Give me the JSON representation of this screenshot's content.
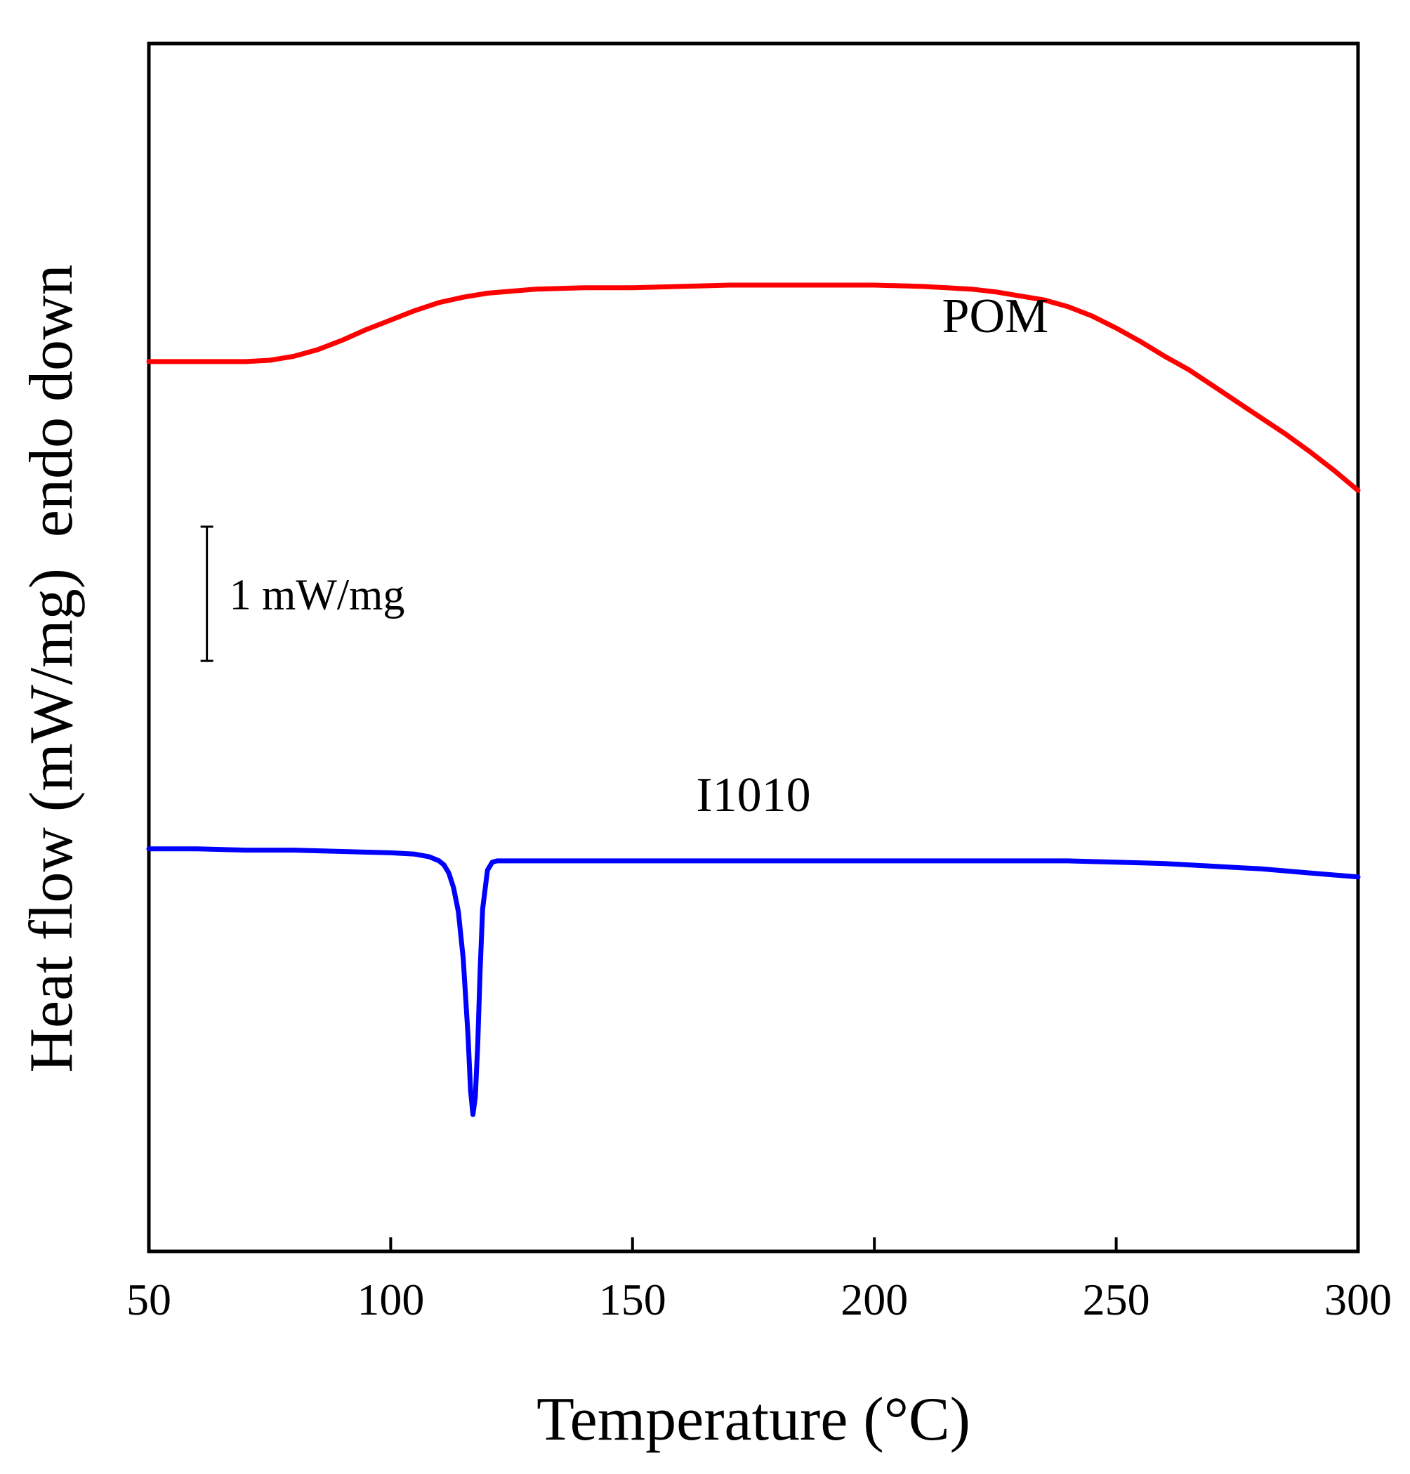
{
  "chart_data": {
    "type": "line",
    "title": "",
    "xlabel": "Temperature (°C)",
    "ylabel": "Heat flow (mW/mg)  endo down",
    "xlim": [
      50,
      300
    ],
    "ylim": [
      -3.5,
      5.5
    ],
    "xticks": [
      50,
      100,
      150,
      200,
      250,
      300
    ],
    "xtick_labels": [
      "50",
      "100",
      "150",
      "200",
      "250",
      "300"
    ],
    "grid": false,
    "legend": "none",
    "scale_bar": {
      "label": "1 mW/mg",
      "value": 1,
      "x": 62,
      "y_bottom": 0.9
    },
    "series": [
      {
        "name": "POM",
        "label": "POM",
        "color": "#ff0000",
        "label_x": 225,
        "label_y": 3.35,
        "x": [
          50,
          60,
          70,
          75,
          80,
          85,
          90,
          95,
          100,
          105,
          110,
          115,
          120,
          130,
          140,
          150,
          160,
          170,
          180,
          190,
          200,
          210,
          220,
          225,
          230,
          235,
          240,
          245,
          250,
          255,
          260,
          265,
          270,
          275,
          280,
          285,
          290,
          295,
          300
        ],
        "y": [
          3.13,
          3.13,
          3.13,
          3.14,
          3.17,
          3.22,
          3.29,
          3.37,
          3.44,
          3.51,
          3.57,
          3.61,
          3.64,
          3.67,
          3.68,
          3.68,
          3.69,
          3.7,
          3.7,
          3.7,
          3.7,
          3.69,
          3.67,
          3.65,
          3.62,
          3.59,
          3.54,
          3.47,
          3.38,
          3.28,
          3.17,
          3.07,
          2.95,
          2.83,
          2.71,
          2.59,
          2.46,
          2.32,
          2.17
        ]
      },
      {
        "name": "I1010",
        "label": "I1010",
        "color": "#0000ff",
        "label_x": 175,
        "label_y": -0.22,
        "x": [
          50,
          60,
          70,
          80,
          90,
          100,
          105,
          108,
          110,
          111,
          112,
          113,
          114,
          115,
          116,
          116.5,
          117,
          117.5,
          118,
          118.5,
          119,
          120,
          121,
          122,
          125,
          130,
          140,
          150,
          160,
          170,
          180,
          190,
          200,
          210,
          220,
          230,
          240,
          250,
          260,
          270,
          280,
          290,
          300
        ],
        "y": [
          -0.5,
          -0.5,
          -0.51,
          -0.51,
          -0.52,
          -0.53,
          -0.54,
          -0.56,
          -0.59,
          -0.62,
          -0.68,
          -0.79,
          -0.97,
          -1.32,
          -1.9,
          -2.3,
          -2.48,
          -2.35,
          -1.95,
          -1.4,
          -0.95,
          -0.66,
          -0.6,
          -0.59,
          -0.59,
          -0.59,
          -0.59,
          -0.59,
          -0.59,
          -0.59,
          -0.59,
          -0.59,
          -0.59,
          -0.59,
          -0.59,
          -0.59,
          -0.59,
          -0.6,
          -0.61,
          -0.63,
          -0.65,
          -0.68,
          -0.71
        ]
      }
    ]
  }
}
